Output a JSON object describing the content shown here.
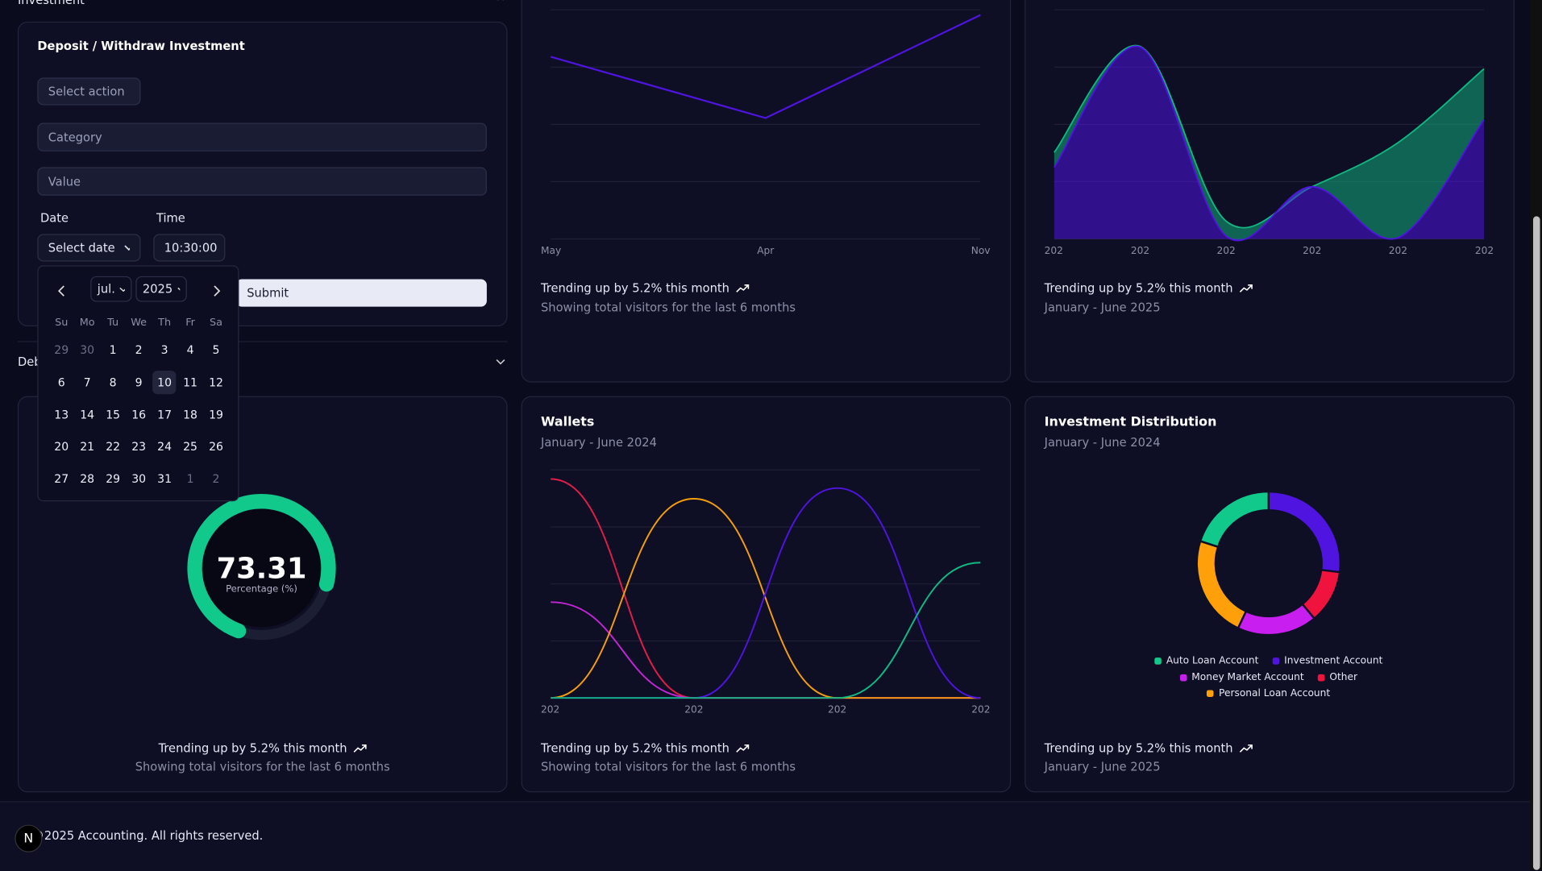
{
  "sidebar_section": "Investment",
  "form": {
    "title": "Deposit / Withdraw Investment",
    "action_placeholder": "Select action",
    "category_placeholder": "Category",
    "value_placeholder": "Value",
    "date_label": "Date",
    "time_label": "Time",
    "date_placeholder": "Select date",
    "time_value": "10:30:00",
    "submit": "Submit"
  },
  "calendar": {
    "month": "jul.",
    "year": "2025",
    "weekdays": [
      "Su",
      "Mo",
      "Tu",
      "We",
      "Th",
      "Fr",
      "Sa"
    ],
    "weeks": [
      [
        "29",
        "30",
        "1",
        "2",
        "3",
        "4",
        "5"
      ],
      [
        "6",
        "7",
        "8",
        "9",
        "10",
        "11",
        "12"
      ],
      [
        "13",
        "14",
        "15",
        "16",
        "17",
        "18",
        "19"
      ],
      [
        "20",
        "21",
        "22",
        "23",
        "24",
        "25",
        "26"
      ],
      [
        "27",
        "28",
        "29",
        "30",
        "31",
        "1",
        "2"
      ]
    ],
    "selected": "10"
  },
  "collapsed_section": "Deb",
  "visitors_chart": {
    "type": "line",
    "categories": [
      "May",
      "Apr",
      "Nov"
    ],
    "values": [
      318,
      211,
      391
    ],
    "ylim": [
      0,
      400
    ],
    "color": "#4f14e0",
    "trend": "Trending up by 5.2% this month",
    "note": "Showing total visitors for the last 6 months"
  },
  "area_chart": {
    "type": "area",
    "categories": [
      "202",
      "202",
      "202",
      "202",
      "202",
      "202"
    ],
    "series": [
      {
        "color": "#4f14e0",
        "values": [
          125,
          335,
          5,
          91,
          2,
          208
        ]
      },
      {
        "color": "#10b981",
        "values": [
          26,
          1,
          26,
          0,
          166,
          89
        ]
      }
    ],
    "ylim": [
      0,
      400
    ],
    "trend": "Trending up by 5.2% this month",
    "note": "January - June 2025"
  },
  "gauge": {
    "type": "radial",
    "value": 73.31,
    "label": "Percentage (%)",
    "ylim": [
      0,
      100
    ],
    "color": "#10c98a",
    "trend": "Trending up by 5.2% this month",
    "note": "Showing total visitors for the last 6 months"
  },
  "wallets": {
    "type": "line",
    "title": "Wallets",
    "subtitle": "January - June 2024",
    "categories": [
      "202",
      "202",
      "202",
      "202"
    ],
    "series": [
      {
        "color": "#e11d48",
        "values": [
          288,
          0,
          0,
          0
        ]
      },
      {
        "color": "#c026d3",
        "values": [
          126,
          0,
          0,
          0
        ]
      },
      {
        "color": "#f59e0b",
        "values": [
          0,
          262,
          0,
          0
        ]
      },
      {
        "color": "#4f14e0",
        "values": [
          0,
          0,
          276,
          0
        ]
      },
      {
        "color": "#10b981",
        "values": [
          0,
          0,
          0,
          178
        ]
      }
    ],
    "ylim": [
      0,
      300
    ],
    "trend": "Trending up by 5.2% this month",
    "note": "Showing total visitors for the last 6 months"
  },
  "distribution": {
    "type": "pie",
    "title": "Investment Distribution",
    "subtitle": "January - June 2024",
    "series": [
      {
        "name": "Auto Loan Account",
        "color": "#10c98a",
        "value": 20
      },
      {
        "name": "Investment Account",
        "color": "#4f14e0",
        "value": 27
      },
      {
        "name": "Money Market Account",
        "color": "#c81ef0",
        "value": 18
      },
      {
        "name": "Other",
        "color": "#f0133e",
        "value": 12
      },
      {
        "name": "Personal Loan Account",
        "color": "#ff9f0a",
        "value": 23
      }
    ],
    "trend": "Trending up by 5.2% this month",
    "note": "January - June 2025"
  },
  "footer": {
    "copyright": "©2025 Accounting. All rights reserved.",
    "badge": "N"
  }
}
